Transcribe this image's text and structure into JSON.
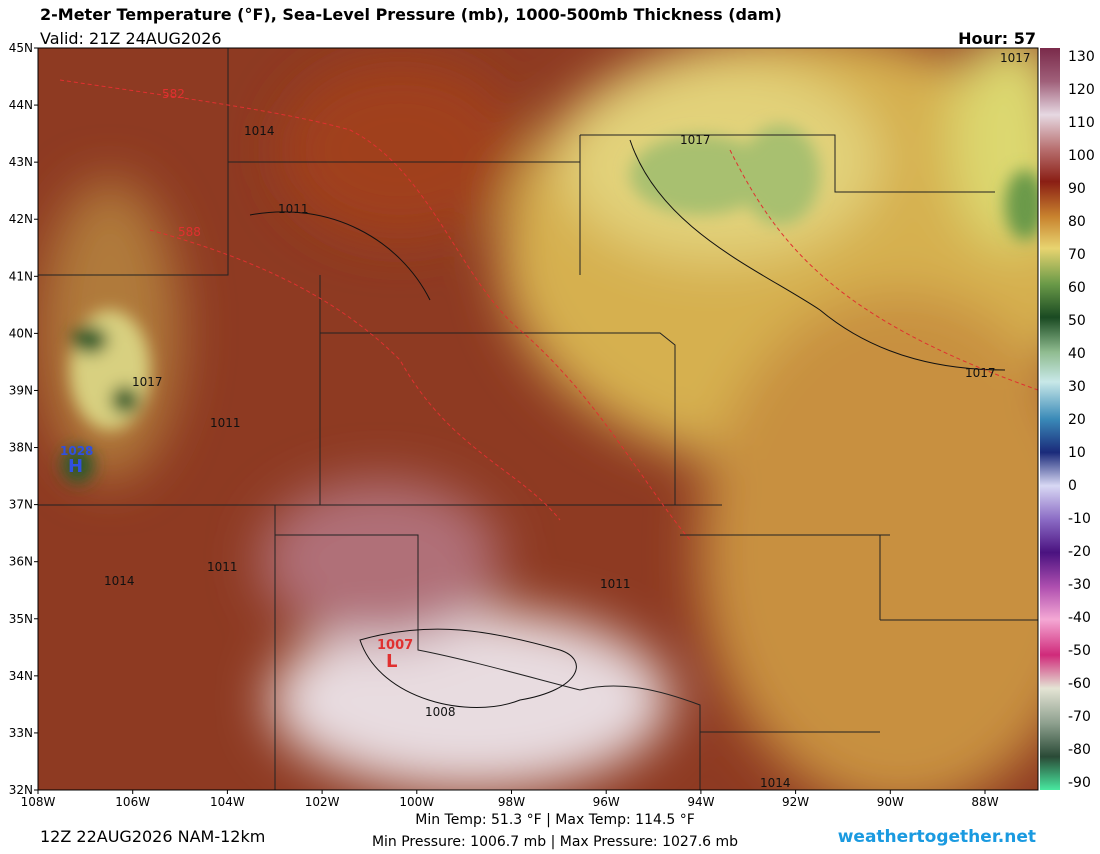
{
  "header": {
    "title": "2-Meter Temperature (°F), Sea-Level Pressure (mb), 1000-500mb Thickness (dam)",
    "valid": "Valid: 21Z 24AUG2026",
    "hour": "Hour: 57"
  },
  "latitudes": [
    "45N",
    "44N",
    "43N",
    "42N",
    "41N",
    "40N",
    "39N",
    "38N",
    "37N",
    "36N",
    "35N",
    "34N",
    "33N",
    "32N"
  ],
  "longitudes": [
    "108W",
    "106W",
    "104W",
    "102W",
    "100W",
    "98W",
    "96W",
    "94W",
    "92W",
    "90W",
    "88W"
  ],
  "colorbar": [
    "130",
    "120",
    "110",
    "100",
    "90",
    "80",
    "70",
    "60",
    "50",
    "40",
    "30",
    "20",
    "10",
    "0",
    "-10",
    "-20",
    "-30",
    "-40",
    "-50",
    "-60",
    "-70",
    "-80",
    "-90"
  ],
  "contour_labels": [
    "582",
    "588",
    "1014",
    "1011",
    "1017",
    "1017",
    "1011",
    "1014",
    "1011",
    "1011",
    "1017",
    "1017",
    "1008",
    "1014"
  ],
  "centers": {
    "low_value": "1007",
    "low": "L",
    "high_value": "1028",
    "high": "H"
  },
  "footer": {
    "run": "12Z 22AUG2026 NAM-12km",
    "temps": "Min Temp:  51.3 °F | Max Temp: 114.5 °F",
    "pressures": "Min Pressure: 1006.7 mb | Max Pressure: 1027.6 mb",
    "site": "weathertogether.net"
  }
}
